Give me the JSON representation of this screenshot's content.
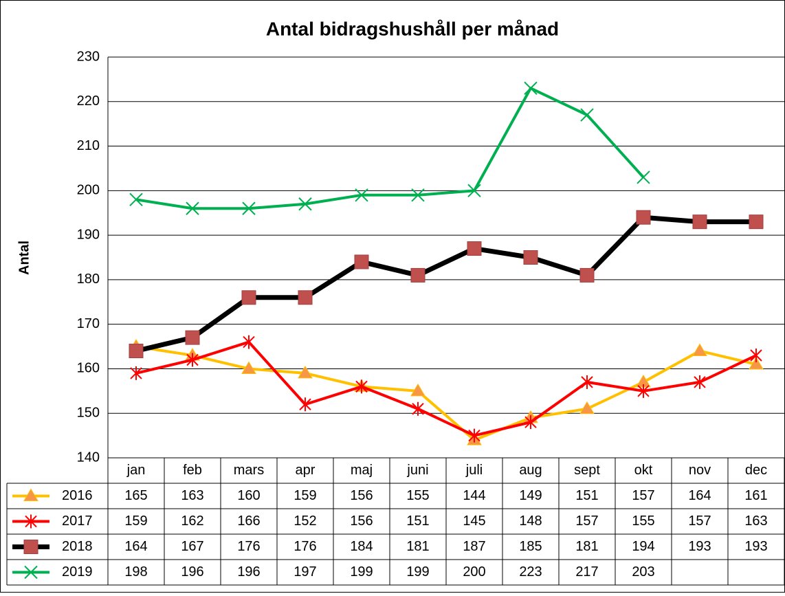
{
  "chart_data": {
    "type": "line",
    "title": "Antal bidragshushåll per månad",
    "y_label": "Antal",
    "categories": [
      "jan",
      "feb",
      "mars",
      "apr",
      "maj",
      "juni",
      "juli",
      "aug",
      "sept",
      "okt",
      "nov",
      "dec"
    ],
    "series": [
      {
        "name": "2016",
        "color": "#FFC000",
        "marker": "triangle",
        "marker_color": "#F79646",
        "values": [
          165,
          163,
          160,
          159,
          156,
          155,
          144,
          149,
          151,
          157,
          164,
          161
        ]
      },
      {
        "name": "2017",
        "color": "#FF0000",
        "marker": "star",
        "marker_color": "#FF0000",
        "values": [
          159,
          162,
          166,
          152,
          156,
          151,
          145,
          148,
          157,
          155,
          157,
          163
        ]
      },
      {
        "name": "2018",
        "color": "#000000",
        "marker": "square",
        "marker_color": "#C0504D",
        "values": [
          164,
          167,
          176,
          176,
          184,
          181,
          187,
          185,
          181,
          194,
          193,
          193
        ]
      },
      {
        "name": "2019",
        "color": "#00B050",
        "marker": "x",
        "marker_color": "#00B050",
        "values": [
          198,
          196,
          196,
          197,
          199,
          199,
          200,
          223,
          217,
          203,
          null,
          null
        ]
      }
    ],
    "ylim": [
      140,
      230
    ],
    "yticks": [
      140,
      150,
      160,
      170,
      180,
      190,
      200,
      210,
      220,
      230
    ],
    "grid": true,
    "data_table": true
  }
}
